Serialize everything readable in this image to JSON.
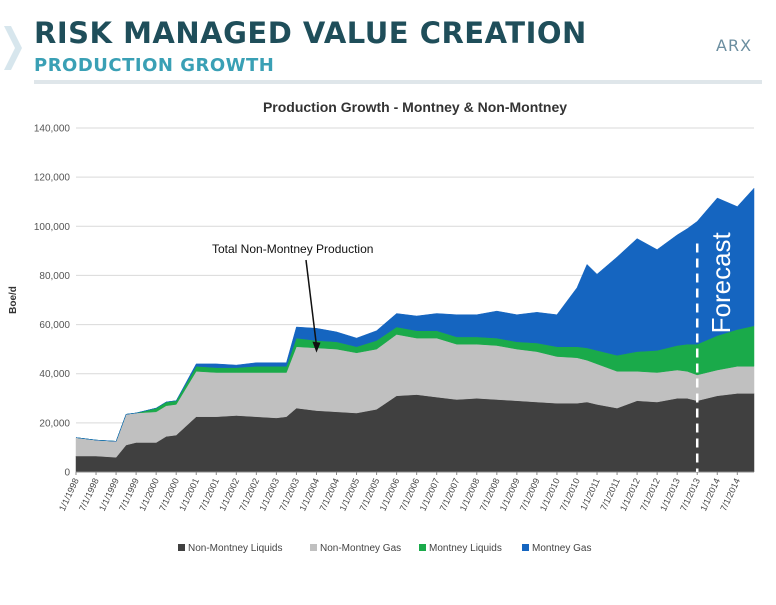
{
  "header": {
    "title": "RISK MANAGED VALUE CREATION",
    "subtitle": "PRODUCTION GROWTH",
    "logo": "ARX"
  },
  "colors": {
    "title": "#1f4e5a",
    "subtitle": "#3aa0b5",
    "non_montney_liquids": "#404040",
    "non_montney_gas": "#c0c0c0",
    "montney_liquids": "#1aaa4a",
    "montney_gas": "#1565c0"
  },
  "chart_data": {
    "type": "area",
    "stacked": true,
    "title": "Production Growth - Montney & Non-Montney",
    "ylabel": "Boe/d",
    "xlabel": "",
    "ylim": [
      0,
      140000
    ],
    "yticks": [
      "0",
      "20,000",
      "40,000",
      "60,000",
      "80,000",
      "100,000",
      "120,000",
      "140,000"
    ],
    "xlim": [
      "1998-01",
      "2014-12"
    ],
    "xticks": [
      "1/1/1998",
      "7/1/1998",
      "1/1/1999",
      "7/1/1999",
      "1/1/2000",
      "7/1/2000",
      "1/1/2001",
      "7/1/2001",
      "1/1/2002",
      "7/1/2002",
      "1/1/2003",
      "7/1/2003",
      "1/1/2004",
      "7/1/2004",
      "1/1/2005",
      "7/1/2005",
      "1/1/2006",
      "7/1/2006",
      "1/1/2007",
      "7/1/2007",
      "1/1/2008",
      "7/1/2008",
      "1/1/2009",
      "7/1/2009",
      "1/1/2010",
      "7/1/2010",
      "1/1/2011",
      "7/1/2011",
      "1/1/2012",
      "7/1/2012",
      "1/1/2013",
      "7/1/2013",
      "1/1/2014",
      "7/1/2014"
    ],
    "x": [
      "1998-01",
      "1998-07",
      "1999-01",
      "1999-04",
      "1999-07",
      "2000-01",
      "2000-04",
      "2000-07",
      "2001-01",
      "2001-07",
      "2002-01",
      "2002-07",
      "2003-01",
      "2003-04",
      "2003-07",
      "2004-01",
      "2004-07",
      "2005-01",
      "2005-07",
      "2006-01",
      "2006-07",
      "2007-01",
      "2007-07",
      "2008-01",
      "2008-07",
      "2009-01",
      "2009-07",
      "2010-01",
      "2010-07",
      "2010-10",
      "2011-01",
      "2011-07",
      "2012-01",
      "2012-07",
      "2013-01",
      "2013-04",
      "2013-07",
      "2014-01",
      "2014-07",
      "2014-12"
    ],
    "series": [
      {
        "name": "Non-Montney Liquids",
        "color": "#404040",
        "values": [
          6500,
          6500,
          6000,
          11000,
          12000,
          12000,
          14500,
          15000,
          22500,
          22500,
          23000,
          22500,
          22000,
          22500,
          26000,
          25000,
          24500,
          24000,
          25500,
          31000,
          31500,
          30500,
          29500,
          30000,
          29500,
          29000,
          28500,
          28000,
          28000,
          28500,
          27500,
          26000,
          29000,
          28500,
          30000,
          30000,
          29000,
          31000,
          32000,
          32000
        ]
      },
      {
        "name": "Non-Montney Gas",
        "color": "#c0c0c0",
        "values": [
          7500,
          6500,
          6500,
          12500,
          12000,
          12500,
          12500,
          12500,
          18500,
          18000,
          17500,
          18000,
          18500,
          18000,
          25000,
          25500,
          25500,
          24500,
          24500,
          25000,
          23000,
          24000,
          22500,
          22000,
          22000,
          21000,
          20500,
          19000,
          18500,
          17000,
          16500,
          15000,
          12000,
          12000,
          11500,
          11000,
          10500,
          10500,
          11000,
          11000
        ]
      },
      {
        "name": "Montney Liquids",
        "color": "#1aaa4a",
        "values": [
          0,
          0,
          0,
          0,
          0,
          1500,
          1500,
          1500,
          2000,
          2000,
          2000,
          2500,
          2500,
          2500,
          3500,
          3000,
          3000,
          2500,
          3500,
          3000,
          3000,
          3000,
          3000,
          3000,
          3000,
          3000,
          3500,
          4000,
          4500,
          5000,
          5500,
          6500,
          8000,
          9000,
          10000,
          11000,
          12500,
          14000,
          15000,
          16500
        ]
      },
      {
        "name": "Montney Gas",
        "color": "#1565c0",
        "values": [
          0,
          0,
          0,
          0,
          0,
          0,
          0,
          0,
          1000,
          1500,
          1000,
          1500,
          1500,
          1500,
          4500,
          5000,
          4000,
          3500,
          4000,
          5500,
          6000,
          7000,
          9000,
          9000,
          11000,
          11000,
          12500,
          13000,
          24000,
          34000,
          31000,
          40000,
          46000,
          41000,
          45000,
          47000,
          50000,
          56000,
          50000,
          56000
        ]
      }
    ],
    "annotations": [
      {
        "text": "Total Non-Montney Production",
        "target_x": "2004-01",
        "target_y": 49000
      },
      {
        "text": "Forecast",
        "x": "2013-07"
      }
    ],
    "legend": {
      "placement": "bottom",
      "items": [
        "Non-Montney Liquids",
        "Non-Montney Gas",
        "Montney Liquids",
        "Montney Gas"
      ]
    },
    "grid": true
  }
}
